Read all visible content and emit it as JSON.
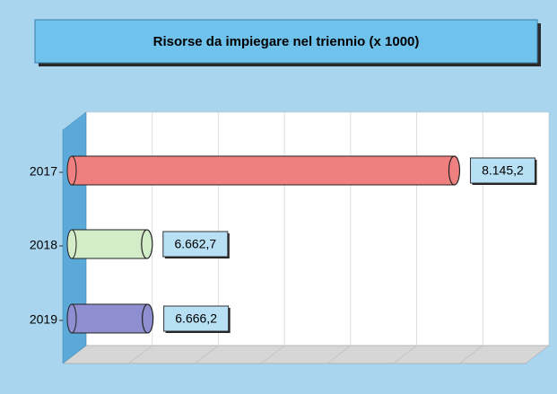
{
  "chart_data": {
    "type": "bar",
    "orientation": "horizontal",
    "title": "Risorse da impiegare nel triennio (x 1000)",
    "categories": [
      "2017",
      "2018",
      "2019"
    ],
    "values": [
      8145.2,
      6662.7,
      6666.2
    ],
    "value_labels": [
      "8.145,2",
      "6.662,7",
      "6.666,2"
    ],
    "colors": [
      "#f08080",
      "#d3edc9",
      "#8e8ed0"
    ],
    "xlim": [
      6300,
      8550
    ],
    "grid": true
  }
}
